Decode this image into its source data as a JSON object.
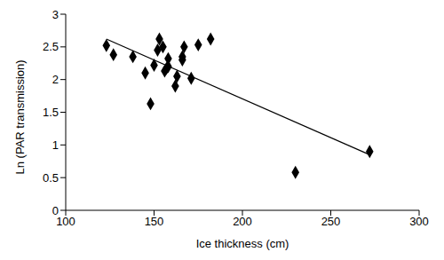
{
  "chart_data": {
    "type": "scatter",
    "xlabel": "Ice thickness (cm)",
    "ylabel": "Ln (PAR transmission)",
    "xlim": [
      100,
      300
    ],
    "xticks": [
      100,
      150,
      200,
      250,
      300
    ],
    "ylim": [
      0,
      3
    ],
    "yticks": [
      0,
      0.5,
      1,
      1.5,
      2,
      2.5,
      3
    ],
    "grid": false,
    "series": [
      {
        "type": "scatter",
        "marker": "diamond",
        "color": "#000000",
        "x": [
          123,
          127,
          138,
          145,
          148,
          150,
          152,
          153,
          155,
          156,
          157,
          158,
          158,
          162,
          163,
          166,
          166,
          167,
          171,
          175,
          182,
          230,
          272
        ],
        "values": [
          2.52,
          2.38,
          2.35,
          2.1,
          1.63,
          2.22,
          2.45,
          2.62,
          2.5,
          2.13,
          2.17,
          2.32,
          2.2,
          1.9,
          2.05,
          2.3,
          2.35,
          2.5,
          2.02,
          2.53,
          2.62,
          0.58,
          0.9
        ]
      },
      {
        "type": "line",
        "line_style": "solid",
        "color": "#000000",
        "x": [
          123,
          272
        ],
        "values": [
          2.62,
          0.85
        ]
      }
    ]
  }
}
